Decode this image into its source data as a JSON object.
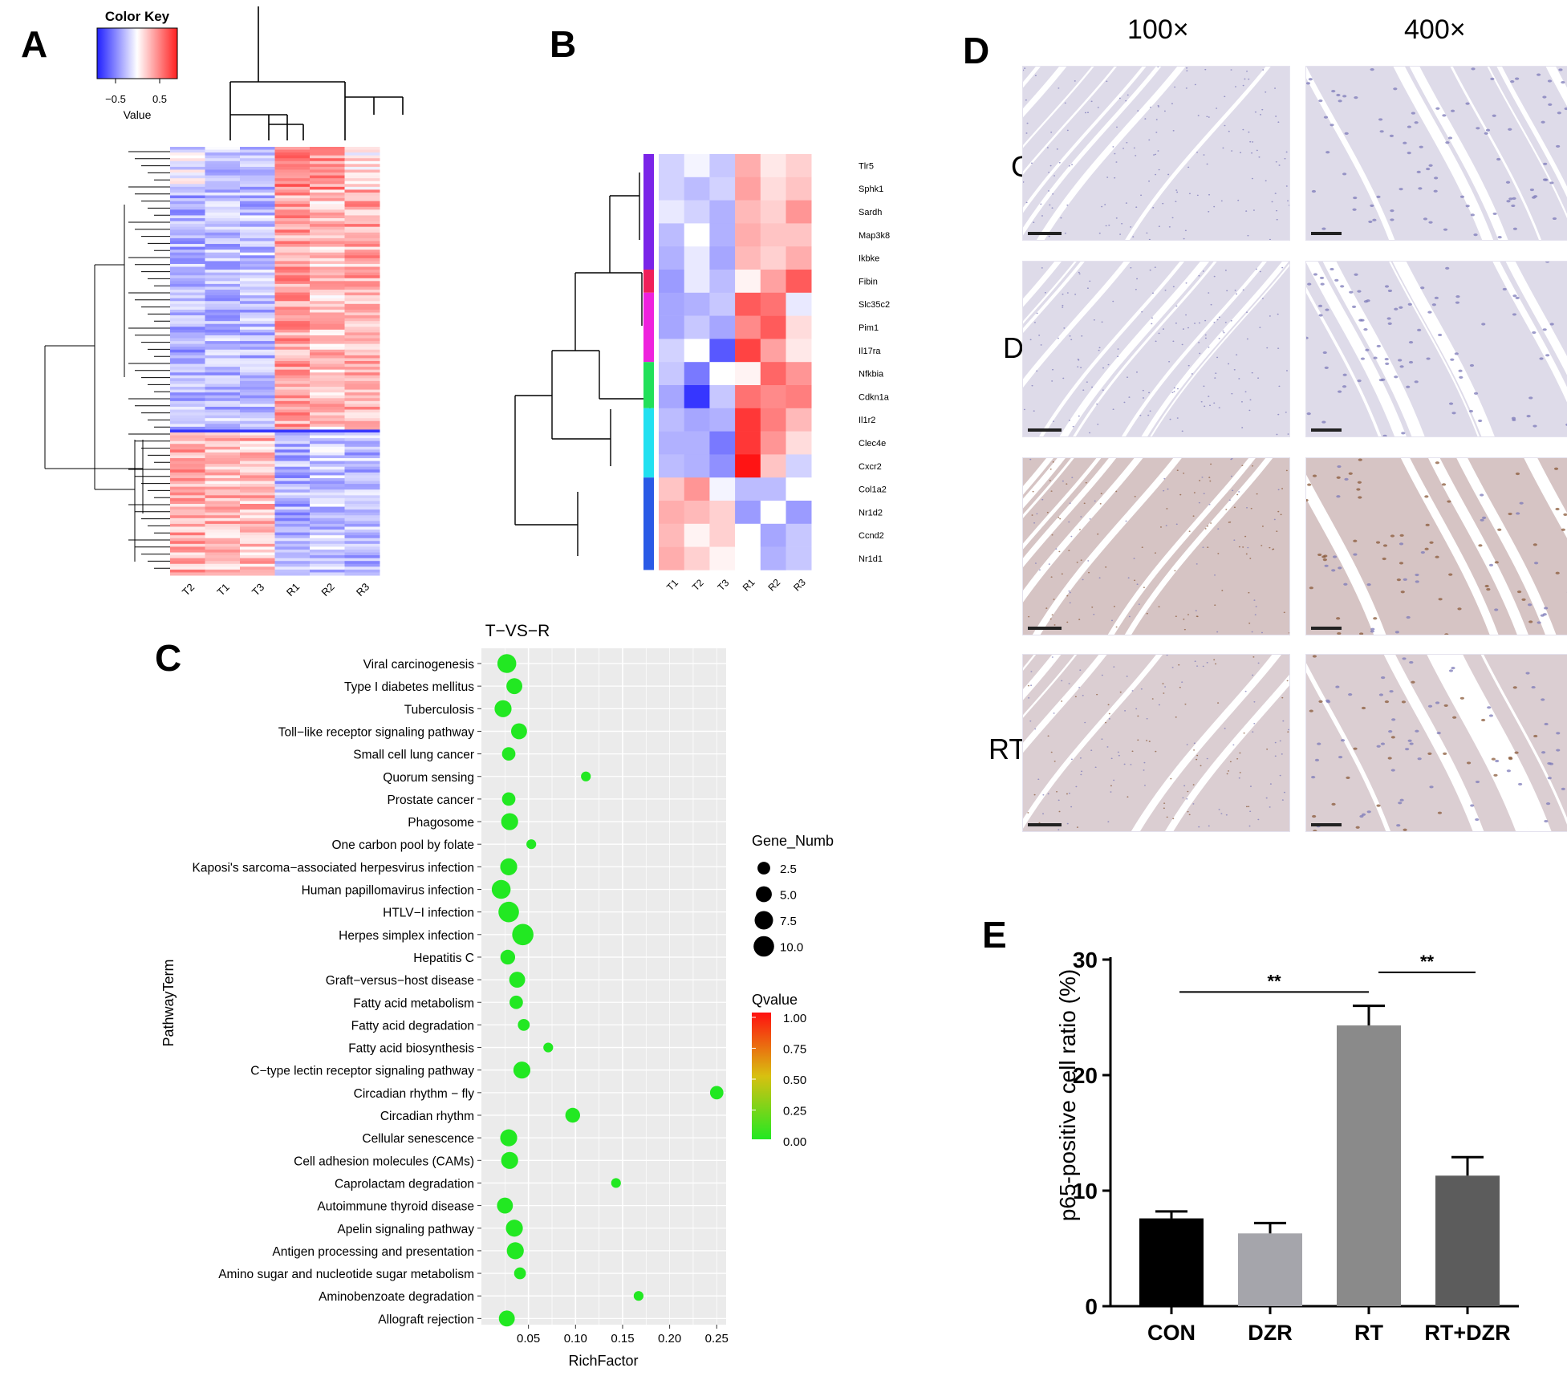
{
  "panels": {
    "A": "A",
    "B": "B",
    "C": "C",
    "D": "D",
    "E": "E"
  },
  "panel_a": {
    "color_key_title": "Color Key",
    "color_key_ticks": [
      "−0.5",
      "0.5"
    ],
    "color_key_label": "Value",
    "columns": [
      "T2",
      "T1",
      "T3",
      "R1",
      "R2",
      "R3"
    ],
    "colors": {
      "low": "#2a2ae6",
      "mid": "#ffffff",
      "high": "#e62a2a",
      "cluster_purple": "#7a24e8",
      "cluster_pink": "#f0205a",
      "cluster_green": "#22e05a",
      "cluster_cyan": "#22e0f0"
    }
  },
  "panel_b": {
    "columns": [
      "T1",
      "T2",
      "T3",
      "R1",
      "R2",
      "R3"
    ],
    "genes": [
      "Tlr5",
      "Sphk1",
      "Sardh",
      "Map3k8",
      "Ikbke",
      "Fibin",
      "Slc35c2",
      "Pim1",
      "Il17ra",
      "Nfkbia",
      "Cdkn1a",
      "Il1r2",
      "Clec4e",
      "Cxcr2",
      "Col1a2",
      "Nr1d2",
      "Ccnd2",
      "Nr1d1"
    ],
    "values": [
      [
        -0.2,
        -0.05,
        -0.25,
        0.35,
        0.1,
        0.2
      ],
      [
        -0.2,
        -0.3,
        -0.2,
        0.4,
        0.15,
        0.25
      ],
      [
        -0.1,
        -0.2,
        -0.35,
        0.3,
        0.2,
        0.45
      ],
      [
        -0.3,
        0.0,
        -0.35,
        0.35,
        0.25,
        0.25
      ],
      [
        -0.35,
        -0.1,
        -0.4,
        0.3,
        0.2,
        0.35
      ],
      [
        -0.45,
        -0.1,
        -0.3,
        0.05,
        0.4,
        0.7
      ],
      [
        -0.4,
        -0.35,
        -0.25,
        0.7,
        0.6,
        -0.1
      ],
      [
        -0.4,
        -0.25,
        -0.4,
        0.5,
        0.7,
        0.15
      ],
      [
        -0.2,
        0.0,
        -0.75,
        0.8,
        0.4,
        0.1
      ],
      [
        -0.25,
        -0.6,
        0.0,
        0.05,
        0.65,
        0.45
      ],
      [
        -0.4,
        -0.9,
        -0.25,
        0.6,
        0.5,
        0.55
      ],
      [
        -0.3,
        -0.4,
        -0.35,
        0.85,
        0.55,
        0.3
      ],
      [
        -0.35,
        -0.35,
        -0.6,
        0.85,
        0.45,
        0.15
      ],
      [
        -0.3,
        -0.35,
        -0.5,
        1.0,
        0.25,
        -0.2
      ],
      [
        0.25,
        0.45,
        -0.05,
        -0.3,
        -0.3,
        0.0
      ],
      [
        0.35,
        0.3,
        0.2,
        -0.45,
        0.0,
        -0.45
      ],
      [
        0.3,
        0.05,
        0.2,
        0.0,
        -0.4,
        -0.25
      ],
      [
        0.35,
        0.2,
        0.05,
        0.0,
        -0.35,
        -0.25
      ]
    ],
    "clusters": [
      {
        "start": 0,
        "count": 5,
        "color": "#7a24e8"
      },
      {
        "start": 5,
        "count": 1,
        "color": "#f0205a"
      },
      {
        "start": 6,
        "count": 3,
        "color": "#ee22dd"
      },
      {
        "start": 9,
        "count": 2,
        "color": "#22e05a"
      },
      {
        "start": 11,
        "count": 3,
        "color": "#22e0f0"
      },
      {
        "start": 14,
        "count": 4,
        "color": "#2a5ae6"
      }
    ]
  },
  "chart_data": [
    {
      "type": "scatter",
      "title": "T−VS−R",
      "xlabel": "RichFactor",
      "ylabel": "PathwayTerm",
      "xlim": [
        0.0,
        0.26
      ],
      "xticks": [
        0.05,
        0.1,
        0.15,
        0.2,
        0.25
      ],
      "xtick_labels": [
        "0.05",
        "0.10",
        "0.15",
        "0.20",
        "0.25"
      ],
      "size_legend_title": "Gene_Numb",
      "size_legend": [
        2.5,
        5.0,
        7.5,
        10.0
      ],
      "size_legend_labels": [
        "2.5",
        "5.0",
        "7.5",
        "10.0"
      ],
      "color_legend_title": "Qvalue",
      "color_legend_ticks": [
        "1.00",
        "0.75",
        "0.50",
        "0.25",
        "0.00"
      ],
      "color_low": "#22e822",
      "color_high": "#ff1010",
      "points": [
        {
          "term": "Viral carcinogenesis",
          "rich": 0.027,
          "genes": 8,
          "q": 0.02
        },
        {
          "term": "Type I diabetes mellitus",
          "rich": 0.035,
          "genes": 5,
          "q": 0.02
        },
        {
          "term": "Tuberculosis",
          "rich": 0.023,
          "genes": 6,
          "q": 0.02
        },
        {
          "term": "Toll−like receptor signaling pathway",
          "rich": 0.04,
          "genes": 5,
          "q": 0.02
        },
        {
          "term": "Small cell lung cancer",
          "rich": 0.029,
          "genes": 3,
          "q": 0.02
        },
        {
          "term": "Quorum sensing",
          "rich": 0.111,
          "genes": 1,
          "q": 0.02
        },
        {
          "term": "Prostate cancer",
          "rich": 0.029,
          "genes": 3,
          "q": 0.02
        },
        {
          "term": "Phagosome",
          "rich": 0.03,
          "genes": 6,
          "q": 0.02
        },
        {
          "term": "One carbon pool by folate",
          "rich": 0.053,
          "genes": 1,
          "q": 0.02
        },
        {
          "term": "Kaposi's sarcoma−associated herpesvirus infection",
          "rich": 0.029,
          "genes": 6,
          "q": 0.02
        },
        {
          "term": "Human papillomavirus infection",
          "rich": 0.021,
          "genes": 8,
          "q": 0.02
        },
        {
          "term": "HTLV−I infection",
          "rich": 0.029,
          "genes": 10,
          "q": 0.02
        },
        {
          "term": "Herpes simplex infection",
          "rich": 0.044,
          "genes": 11,
          "q": 0.02
        },
        {
          "term": "Hepatitis C",
          "rich": 0.028,
          "genes": 4,
          "q": 0.02
        },
        {
          "term": "Graft−versus−host disease",
          "rich": 0.038,
          "genes": 5,
          "q": 0.02
        },
        {
          "term": "Fatty acid metabolism",
          "rich": 0.037,
          "genes": 3,
          "q": 0.02
        },
        {
          "term": "Fatty acid degradation",
          "rich": 0.045,
          "genes": 2,
          "q": 0.02
        },
        {
          "term": "Fatty acid biosynthesis",
          "rich": 0.071,
          "genes": 1,
          "q": 0.02
        },
        {
          "term": "C−type lectin receptor signaling pathway",
          "rich": 0.043,
          "genes": 6,
          "q": 0.02
        },
        {
          "term": "Circadian rhythm − fly",
          "rich": 0.25,
          "genes": 3,
          "q": 0.02
        },
        {
          "term": "Circadian rhythm",
          "rich": 0.097,
          "genes": 4,
          "q": 0.02
        },
        {
          "term": "Cellular senescence",
          "rich": 0.029,
          "genes": 6,
          "q": 0.02
        },
        {
          "term": "Cell adhesion molecules (CAMs)",
          "rich": 0.03,
          "genes": 6,
          "q": 0.02
        },
        {
          "term": "Caprolactam degradation",
          "rich": 0.143,
          "genes": 1,
          "q": 0.02
        },
        {
          "term": "Autoimmune thyroid disease",
          "rich": 0.025,
          "genes": 5,
          "q": 0.02
        },
        {
          "term": "Apelin signaling pathway",
          "rich": 0.035,
          "genes": 6,
          "q": 0.02
        },
        {
          "term": "Antigen processing and presentation",
          "rich": 0.036,
          "genes": 6,
          "q": 0.02
        },
        {
          "term": "Amino sugar and nucleotide sugar metabolism",
          "rich": 0.041,
          "genes": 2,
          "q": 0.02
        },
        {
          "term": "Aminobenzoate degradation",
          "rich": 0.167,
          "genes": 1,
          "q": 0.02
        },
        {
          "term": "Allograft rejection",
          "rich": 0.027,
          "genes": 5,
          "q": 0.02
        }
      ]
    },
    {
      "type": "bar",
      "ylabel": "p65-positive cell ratio (%)",
      "ylim": [
        0,
        30
      ],
      "yticks": [
        0,
        10,
        20,
        30
      ],
      "ytick_labels": [
        "0",
        "10",
        "20",
        "30"
      ],
      "categories": [
        "CON",
        "DZR",
        "RT",
        "RT+DZR"
      ],
      "values": [
        7.6,
        6.3,
        24.3,
        11.3
      ],
      "errors": [
        0.6,
        0.9,
        1.7,
        1.6
      ],
      "colors": [
        "#000000",
        "#a5a5ab",
        "#8a8a8a",
        "#5c5c5c"
      ],
      "significance": [
        {
          "from": 0,
          "to": 2,
          "label": "**"
        },
        {
          "from": 2,
          "to": 3,
          "label": "**"
        }
      ]
    }
  ],
  "panel_d": {
    "magnifications": [
      "100×",
      "400×"
    ],
    "groups": [
      "CON",
      "DZR",
      "RT",
      "RT+DZR"
    ],
    "stain_intensity": [
      0.0,
      0.0,
      1.0,
      0.6
    ]
  }
}
